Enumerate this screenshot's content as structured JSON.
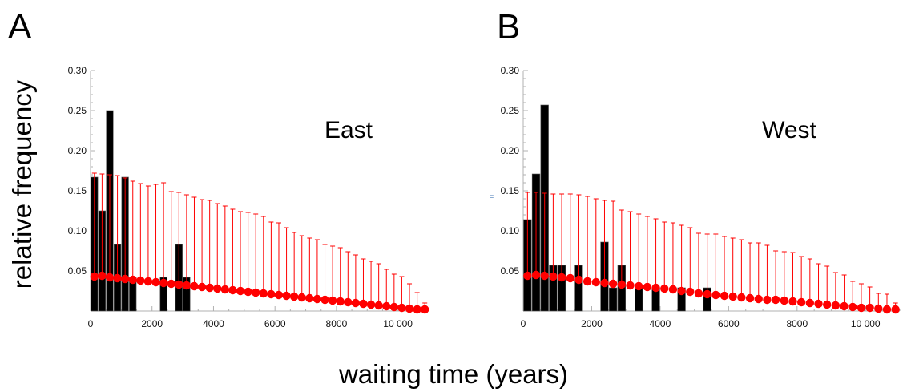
{
  "panels": {
    "a": "A",
    "b": "B"
  },
  "ylabel": "relative frequency",
  "xlabel": "waiting time (years)",
  "colors": {
    "bars": "#000000",
    "simulated": "#ff0000"
  },
  "chart_data": [
    {
      "type": "bar",
      "panel": "A",
      "annotation": "East",
      "xlim": [
        0,
        11000
      ],
      "ylim": [
        0,
        0.3
      ],
      "xticks": [
        "0",
        "2000",
        "4000",
        "6000",
        "8000",
        "10 000"
      ],
      "yticks": [
        "0.05",
        "0.10",
        "0.15",
        "0.20",
        "0.25",
        "0.30"
      ],
      "bin_width": 250,
      "observed_histogram": {
        "bin_start": [
          0,
          250,
          500,
          750,
          1000,
          1250,
          2250,
          2750,
          3000
        ],
        "values": [
          0.167,
          0.125,
          0.25,
          0.083,
          0.167,
          0.042,
          0.042,
          0.083,
          0.042
        ]
      },
      "simulated": {
        "x": [
          0,
          250,
          500,
          750,
          1000,
          1250,
          1500,
          1750,
          2000,
          2250,
          2500,
          2750,
          3000,
          3250,
          3500,
          3750,
          4000,
          4250,
          4500,
          4750,
          5000,
          5250,
          5500,
          5750,
          6000,
          6250,
          6500,
          6750,
          7000,
          7250,
          7500,
          7750,
          8000,
          8250,
          8500,
          8750,
          9000,
          9250,
          9500,
          9750,
          10000,
          10250,
          10500,
          10750
        ],
        "mean": [
          0.043,
          0.044,
          0.042,
          0.041,
          0.04,
          0.039,
          0.038,
          0.037,
          0.036,
          0.035,
          0.034,
          0.033,
          0.032,
          0.031,
          0.03,
          0.029,
          0.028,
          0.027,
          0.026,
          0.025,
          0.024,
          0.023,
          0.022,
          0.021,
          0.02,
          0.019,
          0.018,
          0.017,
          0.016,
          0.015,
          0.014,
          0.013,
          0.012,
          0.011,
          0.01,
          0.009,
          0.008,
          0.007,
          0.006,
          0.005,
          0.004,
          0.003,
          0.002,
          0.002
        ],
        "upper": [
          0.172,
          0.171,
          0.17,
          0.169,
          0.166,
          0.162,
          0.159,
          0.156,
          0.158,
          0.16,
          0.149,
          0.148,
          0.145,
          0.142,
          0.139,
          0.138,
          0.134,
          0.131,
          0.127,
          0.124,
          0.123,
          0.121,
          0.118,
          0.111,
          0.11,
          0.104,
          0.098,
          0.094,
          0.091,
          0.089,
          0.083,
          0.081,
          0.079,
          0.074,
          0.07,
          0.065,
          0.062,
          0.059,
          0.052,
          0.046,
          0.043,
          0.034,
          0.023,
          0.01
        ]
      }
    },
    {
      "type": "bar",
      "panel": "B",
      "annotation": "West",
      "xlim": [
        0,
        11000
      ],
      "ylim": [
        0,
        0.3
      ],
      "xticks": [
        "0",
        "2000",
        "4000",
        "6000",
        "8000",
        "10 000"
      ],
      "yticks": [
        "0.05",
        "0.10",
        "0.15",
        "0.20",
        "0.25",
        "0.30"
      ],
      "bin_width": 250,
      "observed_histogram": {
        "bin_start": [
          0,
          250,
          500,
          750,
          1000,
          1500,
          2250,
          2500,
          2750,
          3250,
          3750,
          4500,
          5250
        ],
        "values": [
          0.114,
          0.171,
          0.257,
          0.057,
          0.057,
          0.057,
          0.086,
          0.029,
          0.057,
          0.029,
          0.029,
          0.029,
          0.029
        ]
      },
      "simulated": {
        "x": [
          0,
          250,
          500,
          750,
          1000,
          1250,
          1500,
          1750,
          2000,
          2250,
          2500,
          2750,
          3000,
          3250,
          3500,
          3750,
          4000,
          4250,
          4500,
          4750,
          5000,
          5250,
          5500,
          5750,
          6000,
          6250,
          6500,
          6750,
          7000,
          7250,
          7500,
          7750,
          8000,
          8250,
          8500,
          8750,
          9000,
          9250,
          9500,
          9750,
          10000,
          10250,
          10500,
          10750
        ],
        "mean": [
          0.044,
          0.045,
          0.044,
          0.043,
          0.042,
          0.041,
          0.039,
          0.037,
          0.036,
          0.035,
          0.034,
          0.033,
          0.032,
          0.031,
          0.03,
          0.029,
          0.028,
          0.027,
          0.025,
          0.024,
          0.022,
          0.021,
          0.02,
          0.019,
          0.018,
          0.017,
          0.016,
          0.015,
          0.014,
          0.014,
          0.013,
          0.012,
          0.011,
          0.01,
          0.009,
          0.008,
          0.007,
          0.006,
          0.005,
          0.004,
          0.004,
          0.003,
          0.002,
          0.002
        ],
        "upper": [
          0.148,
          0.148,
          0.147,
          0.146,
          0.146,
          0.146,
          0.145,
          0.143,
          0.14,
          0.138,
          0.137,
          0.126,
          0.124,
          0.121,
          0.118,
          0.115,
          0.111,
          0.11,
          0.107,
          0.104,
          0.097,
          0.096,
          0.096,
          0.093,
          0.091,
          0.089,
          0.085,
          0.085,
          0.082,
          0.075,
          0.074,
          0.073,
          0.068,
          0.065,
          0.059,
          0.056,
          0.048,
          0.045,
          0.037,
          0.034,
          0.03,
          0.022,
          0.021,
          0.01
        ]
      }
    }
  ]
}
